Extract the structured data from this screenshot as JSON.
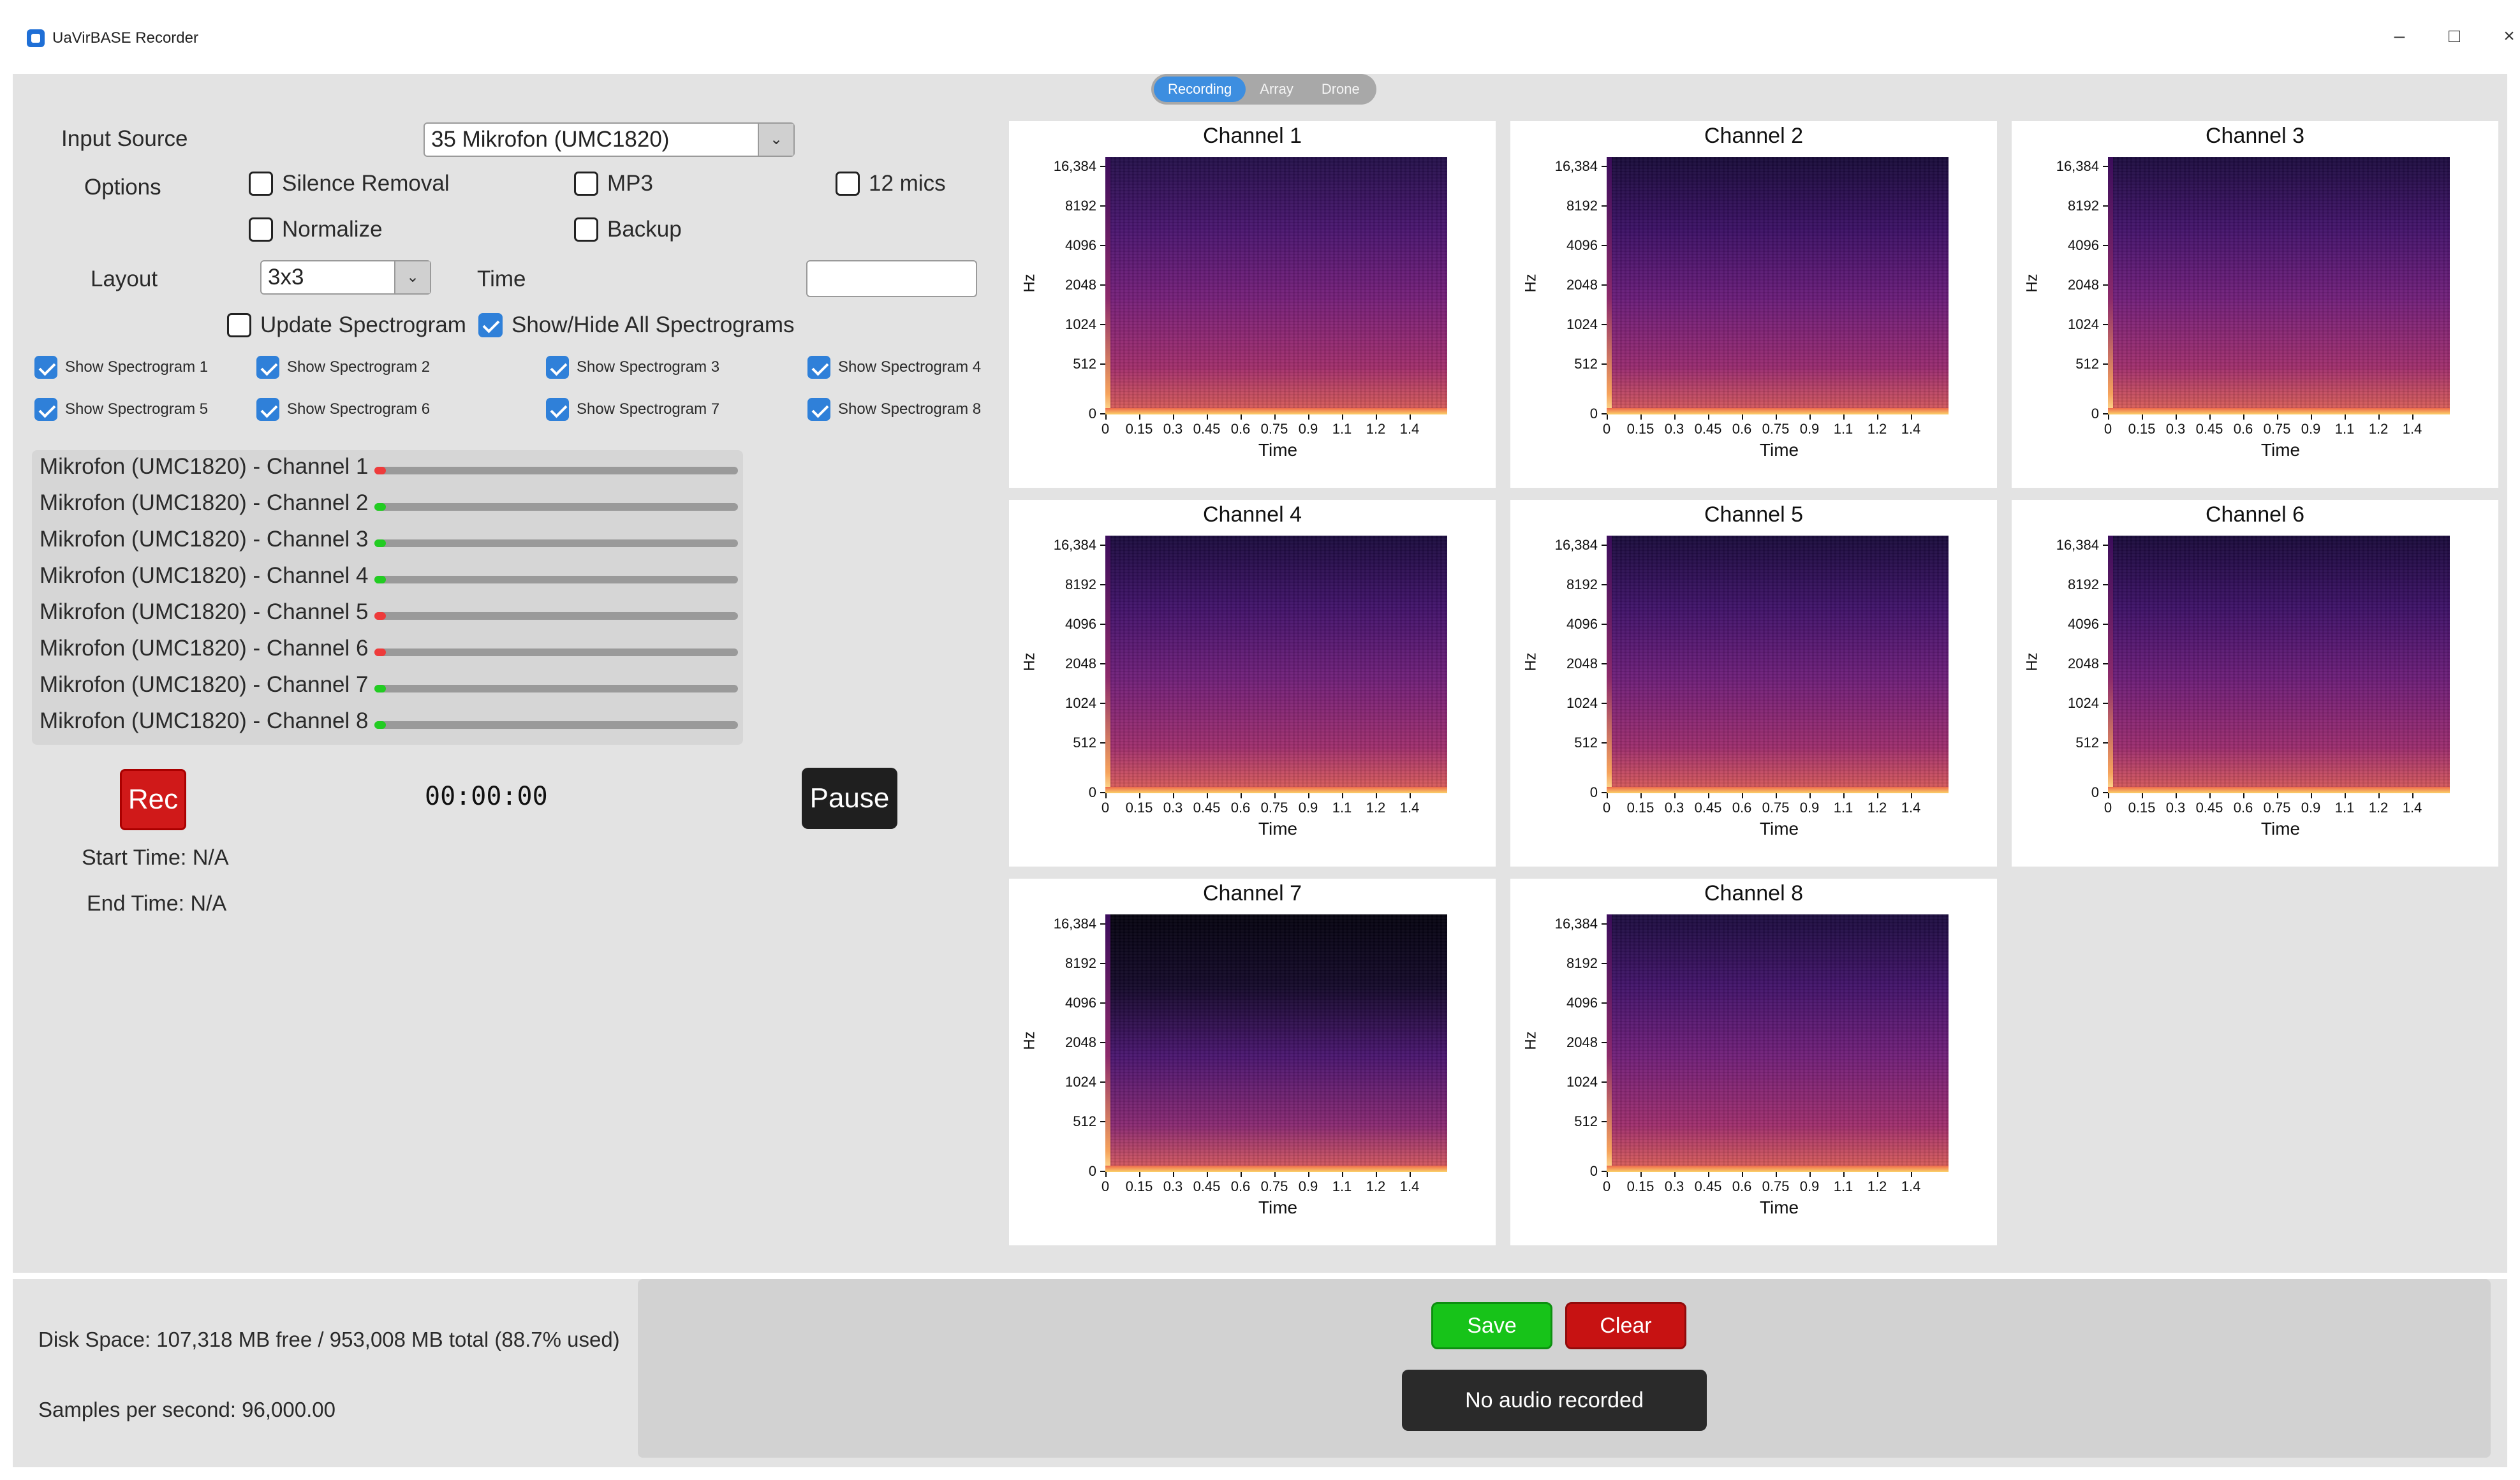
{
  "window": {
    "title": "UaVirBASE Recorder",
    "minimize": "–",
    "maximize": "□",
    "close": "×"
  },
  "mode_tabs": [
    {
      "label": "Recording",
      "active": true
    },
    {
      "label": "Array",
      "active": false
    },
    {
      "label": "Drone",
      "active": false
    }
  ],
  "controls": {
    "input_source_label": "Input Source",
    "input_source_value": "35 Mikrofon (UMC1820)",
    "options_label": "Options",
    "options": {
      "silence_removal": {
        "label": "Silence Removal",
        "checked": false
      },
      "mp3": {
        "label": "MP3",
        "checked": false
      },
      "twelve_mics": {
        "label": "12 mics",
        "checked": false
      },
      "normalize": {
        "label": "Normalize",
        "checked": false
      },
      "backup": {
        "label": "Backup",
        "checked": false
      }
    },
    "layout_label": "Layout",
    "layout_value": "3x3",
    "time_label": "Time",
    "time_value": "",
    "update_spectrogram": {
      "label": "Update Spectrogram",
      "checked": false
    },
    "show_hide_all": {
      "label": "Show/Hide All Spectrograms",
      "checked": true
    },
    "show_spectrograms": [
      {
        "label": "Show Spectrogram 1",
        "checked": true
      },
      {
        "label": "Show Spectrogram 2",
        "checked": true
      },
      {
        "label": "Show Spectrogram 3",
        "checked": true
      },
      {
        "label": "Show Spectrogram 4",
        "checked": true
      },
      {
        "label": "Show Spectrogram 5",
        "checked": true
      },
      {
        "label": "Show Spectrogram 6",
        "checked": true
      },
      {
        "label": "Show Spectrogram 7",
        "checked": true
      },
      {
        "label": "Show Spectrogram 8",
        "checked": true
      }
    ]
  },
  "meters": [
    {
      "label": "Mikrofon (UMC1820) - Channel 1",
      "status_color": "#ee3b3b"
    },
    {
      "label": "Mikrofon (UMC1820) - Channel 2",
      "status_color": "#22cc22"
    },
    {
      "label": "Mikrofon (UMC1820) - Channel 3",
      "status_color": "#22cc22"
    },
    {
      "label": "Mikrofon (UMC1820) - Channel 4",
      "status_color": "#22cc22"
    },
    {
      "label": "Mikrofon (UMC1820) - Channel 5",
      "status_color": "#ee3b3b"
    },
    {
      "label": "Mikrofon (UMC1820) - Channel 6",
      "status_color": "#ee3b3b"
    },
    {
      "label": "Mikrofon (UMC1820) - Channel 7",
      "status_color": "#22cc22"
    },
    {
      "label": "Mikrofon (UMC1820) - Channel 8",
      "status_color": "#22cc22"
    }
  ],
  "recording": {
    "rec_label": "Rec",
    "timer": "00:00:00",
    "pause_label": "Pause",
    "start_time": "Start Time: N/A",
    "end_time": "End Time: N/A"
  },
  "spectrogram_axes": {
    "y_ticks": [
      "16,384",
      "8192",
      "4096",
      "2048",
      "1024",
      "512",
      "0"
    ],
    "x_ticks": [
      "0",
      "0.15",
      "0.3",
      "0.45",
      "0.6",
      "0.75",
      "0.9",
      "1.1",
      "1.2",
      "1.4"
    ],
    "ylabel": "Hz",
    "xlabel": "Time",
    "colormap": "magma"
  },
  "spectrograms": [
    {
      "title": "Channel 1"
    },
    {
      "title": "Channel 2"
    },
    {
      "title": "Channel 3"
    },
    {
      "title": "Channel 4"
    },
    {
      "title": "Channel 5"
    },
    {
      "title": "Channel 6"
    },
    {
      "title": "Channel 7"
    },
    {
      "title": "Channel 8"
    }
  ],
  "footer": {
    "disk_space": "Disk Space: 107,318 MB free / 953,008 MB total (88.7% used)",
    "samples_per_second": "Samples per second: 96,000.00",
    "save_label": "Save",
    "clear_label": "Clear",
    "status": "No audio recorded"
  },
  "colors": {
    "accent": "#2f80d9",
    "rec": "#d01919",
    "save": "#17c319",
    "clear": "#c71212"
  }
}
